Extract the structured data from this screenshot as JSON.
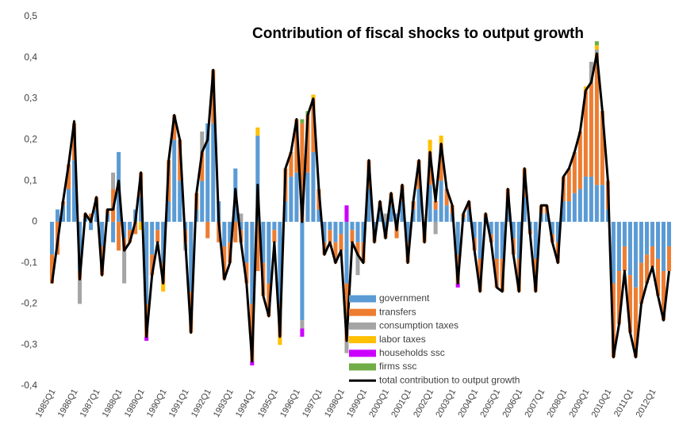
{
  "chart_data": {
    "type": "bar",
    "stacked": true,
    "title": "Contribution of fiscal shocks to output growth",
    "categories": [
      "1985Q1",
      null,
      null,
      null,
      "1986Q1",
      null,
      null,
      null,
      "1987Q1",
      null,
      null,
      null,
      "1988Q1",
      null,
      null,
      null,
      "1989Q1",
      null,
      null,
      null,
      "1990Q1",
      null,
      null,
      null,
      "1991Q1",
      null,
      null,
      null,
      "1992Q1",
      null,
      null,
      null,
      "1993Q1",
      null,
      null,
      null,
      "1994Q1",
      null,
      null,
      null,
      "1995Q1",
      null,
      null,
      null,
      "1996Q1",
      null,
      null,
      null,
      "1997Q1",
      null,
      null,
      null,
      "1998Q1",
      null,
      null,
      null,
      "1999Q1",
      null,
      null,
      null,
      "2000Q1",
      null,
      null,
      null,
      "2001Q1",
      null,
      null,
      null,
      "2002Q1",
      null,
      null,
      null,
      "2003Q1",
      null,
      null,
      null,
      "2004Q1",
      null,
      null,
      null,
      "2005Q1",
      null,
      null,
      null,
      "2006Q1",
      null,
      null,
      null,
      "2007Q1",
      null,
      null,
      null,
      "2008Q1",
      null,
      null,
      null,
      "2009Q1",
      null,
      null,
      null,
      "2010Q1",
      null,
      null,
      null,
      "2011Q1",
      null,
      null,
      null,
      "2012Q1",
      null,
      null,
      null
    ],
    "ylim": [
      -0.4,
      0.5
    ],
    "yticks": [
      {
        "value": 0.5,
        "label": "0,5"
      },
      {
        "value": 0.4,
        "label": "0,4"
      },
      {
        "value": 0.3,
        "label": "0,3"
      },
      {
        "value": 0.2,
        "label": "0,2"
      },
      {
        "value": 0.1,
        "label": "0,1"
      },
      0,
      {
        "value": -0.1,
        "label": "-0,1"
      },
      {
        "value": -0.2,
        "label": "-0,2"
      },
      {
        "value": -0.3,
        "label": "-0,3"
      },
      {
        "value": -0.4,
        "label": "-0,4"
      }
    ],
    "grid": false,
    "series": [
      {
        "name": "government",
        "color": "#5b9bd5",
        "values": [
          -0.08,
          0.03,
          0.04,
          0.08,
          0.15,
          -0.12,
          0.01,
          -0.02,
          0.03,
          -0.06,
          0.02,
          -0.05,
          0.17,
          -0.04,
          -0.02,
          0.03,
          0.06,
          -0.2,
          -0.08,
          -0.02,
          -0.1,
          0.05,
          0.2,
          0.1,
          -0.02,
          -0.17,
          0.03,
          0.1,
          0.24,
          0.24,
          0.05,
          -0.06,
          -0.05,
          0.13,
          -0.02,
          -0.1,
          -0.2,
          0.21,
          -0.1,
          -0.15,
          -0.02,
          -0.2,
          0.05,
          0.11,
          0.12,
          -0.24,
          0.12,
          0.17,
          0.03,
          -0.05,
          -0.02,
          -0.05,
          -0.03,
          -0.15,
          -0.02,
          -0.05,
          -0.05,
          0.08,
          -0.02,
          0.03,
          -0.02,
          0.04,
          0.02,
          0.05,
          -0.05,
          0.03,
          0.08,
          -0.02,
          0.09,
          0.03,
          0.1,
          0.04,
          0.02,
          -0.08,
          0.01,
          0.03,
          -0.04,
          -0.09,
          0.01,
          -0.03,
          -0.09,
          -0.09,
          0.04,
          -0.04,
          -0.09,
          0.06,
          -0.02,
          -0.09,
          0.02,
          0.02,
          -0.03,
          -0.05,
          0.05,
          0.05,
          0.07,
          0.08,
          0.11,
          0.11,
          0.09,
          0.09,
          0.03,
          -0.15,
          -0.12,
          -0.06,
          -0.13,
          -0.16,
          -0.1,
          -0.08,
          -0.06,
          -0.09,
          -0.12,
          -0.06
        ]
      },
      {
        "name": "transfers",
        "color": "#ed7d31",
        "values": [
          -0.07,
          -0.08,
          0.01,
          0.06,
          0.09,
          -0.02,
          0.01,
          0.02,
          0.03,
          -0.07,
          0.01,
          0.08,
          -0.07,
          -0.03,
          -0.03,
          -0.03,
          0.06,
          -0.08,
          -0.05,
          -0.03,
          -0.05,
          0.1,
          0.06,
          0.1,
          -0.03,
          -0.1,
          0.04,
          0.07,
          -0.04,
          0.13,
          -0.05,
          -0.08,
          -0.05,
          -0.05,
          -0.03,
          -0.05,
          -0.14,
          -0.12,
          -0.08,
          -0.08,
          -0.03,
          -0.08,
          0.08,
          0.06,
          0.13,
          0.24,
          0.14,
          0.13,
          0.05,
          -0.03,
          -0.03,
          -0.05,
          -0.04,
          -0.14,
          -0.03,
          -0.03,
          -0.05,
          0.07,
          -0.03,
          0.02,
          -0.02,
          0.03,
          -0.04,
          0.04,
          -0.05,
          0.02,
          0.07,
          -0.03,
          0.08,
          0.02,
          0.09,
          0.04,
          0.02,
          -0.07,
          0.01,
          0.02,
          -0.03,
          -0.08,
          0.01,
          -0.02,
          -0.07,
          -0.08,
          0.04,
          -0.04,
          -0.08,
          0.07,
          -0.01,
          -0.08,
          0.02,
          0.02,
          -0.02,
          -0.05,
          0.06,
          0.08,
          0.1,
          0.14,
          0.21,
          0.23,
          0.32,
          0.18,
          0.07,
          -0.18,
          -0.13,
          -0.06,
          -0.14,
          -0.17,
          -0.1,
          -0.07,
          -0.05,
          -0.09,
          -0.12,
          -0.06
        ]
      },
      {
        "name": "consumption taxes",
        "color": "#a5a5a5",
        "values": [
          0,
          0,
          0,
          0,
          0,
          -0.06,
          0,
          0,
          0,
          0,
          0,
          0.04,
          0,
          -0.08,
          0,
          0,
          0,
          0,
          0,
          0,
          0,
          0,
          0,
          0,
          -0.02,
          0,
          0,
          0.05,
          0,
          0,
          0,
          0,
          0,
          0,
          0.02,
          0,
          0,
          0,
          0,
          0,
          0,
          0,
          0,
          0,
          0,
          -0.02,
          0,
          0,
          0,
          0,
          0,
          0,
          0,
          -0.03,
          0,
          -0.05,
          0,
          0,
          0,
          0,
          0.02,
          0,
          0,
          0,
          0,
          0,
          0,
          0,
          0,
          -0.03,
          0,
          0,
          0,
          0,
          0,
          0,
          0,
          0,
          0,
          0,
          0,
          0,
          0,
          0,
          0,
          0,
          0,
          0,
          0,
          0,
          0,
          0,
          0,
          0,
          0,
          0,
          0,
          0.05,
          0.01,
          0,
          0,
          0,
          0,
          0,
          0,
          0,
          0,
          0,
          0,
          0,
          0,
          0
        ]
      },
      {
        "name": "labor taxes",
        "color": "#ffc000",
        "values": [
          0,
          0,
          0,
          0,
          0,
          0,
          0,
          0,
          0,
          0,
          0,
          0,
          0,
          0,
          0,
          0,
          -0.02,
          0,
          0,
          0,
          -0.02,
          0,
          0,
          0,
          0,
          0,
          0,
          0,
          0,
          0,
          0,
          0,
          0,
          0,
          0,
          0,
          0,
          0.02,
          0,
          0,
          0,
          -0.02,
          0,
          0,
          0,
          0,
          0,
          0.01,
          0,
          0,
          0,
          0,
          0,
          0,
          0,
          0,
          0,
          0,
          0,
          0,
          0,
          0,
          0,
          0,
          0,
          0,
          0,
          0,
          0.03,
          0,
          0.02,
          0,
          0,
          0,
          0,
          0,
          0,
          0,
          0,
          0,
          0,
          0,
          0,
          0,
          0,
          0,
          0,
          0,
          0,
          0,
          0,
          0,
          0,
          0,
          0,
          0,
          0.01,
          0,
          0.01,
          0,
          0,
          0,
          0,
          0,
          0,
          0,
          0,
          0,
          0,
          0,
          0,
          0
        ]
      },
      {
        "name": "households ssc",
        "color": "#cc00ff",
        "values": [
          0,
          0,
          0,
          0,
          0,
          0,
          0,
          0,
          0,
          0,
          0,
          0,
          0,
          0,
          0,
          0,
          0,
          -0.01,
          0,
          0,
          0,
          0,
          0,
          0,
          0,
          0,
          0,
          0,
          0,
          0,
          0,
          0,
          0,
          0,
          0,
          0,
          -0.01,
          0,
          0,
          0,
          0,
          0,
          0,
          0,
          0,
          -0.02,
          0,
          0,
          0,
          0,
          0,
          0,
          0,
          0.04,
          0,
          0,
          0,
          0,
          0,
          0,
          0,
          0,
          0,
          0,
          0,
          0,
          0,
          0,
          0,
          0,
          0,
          0,
          0,
          -0.01,
          0,
          0,
          0,
          0,
          0,
          0,
          0,
          0,
          0,
          0,
          0,
          0,
          0,
          0,
          0,
          0,
          0,
          0,
          0,
          0,
          0,
          0,
          0,
          0,
          0,
          0,
          0,
          0,
          0,
          0,
          0,
          0,
          0,
          0,
          0,
          0,
          0,
          0
        ]
      },
      {
        "name": "firms ssc",
        "color": "#70ad47",
        "values": [
          0,
          0,
          0,
          0,
          0,
          0,
          0,
          0,
          0,
          0,
          0,
          0,
          0,
          0,
          0,
          0,
          0,
          0,
          0,
          0,
          0,
          0,
          0,
          0,
          0,
          0,
          0,
          0,
          0,
          0,
          0,
          0,
          0,
          0,
          0,
          0,
          0,
          0,
          0,
          0,
          0,
          0,
          0,
          0,
          0,
          0.01,
          0.01,
          0,
          0,
          0,
          0,
          0,
          0,
          0,
          0,
          0,
          0,
          0,
          0,
          0,
          0,
          0,
          0,
          0,
          0,
          0,
          0,
          0,
          0,
          0,
          0,
          0,
          0,
          0,
          0,
          0,
          0,
          0,
          0,
          0,
          0,
          0,
          0,
          0,
          0,
          0,
          0,
          0,
          0,
          0,
          0,
          0,
          0,
          0,
          0,
          0,
          0,
          0,
          0.01,
          0,
          0,
          0,
          0,
          0,
          0,
          0,
          0,
          0,
          0,
          0,
          0,
          0
        ]
      },
      {
        "name": "total contribution to output growth",
        "color": "#000000",
        "type": "line",
        "values": [
          -0.15,
          -0.05,
          0.05,
          0.14,
          0.245,
          -0.14,
          0.02,
          0.0,
          0.06,
          -0.13,
          0.03,
          0.03,
          0.1,
          -0.07,
          -0.05,
          0.0,
          0.12,
          -0.28,
          -0.13,
          -0.05,
          -0.15,
          0.15,
          0.26,
          0.2,
          -0.05,
          -0.27,
          0.07,
          0.17,
          0.2,
          0.37,
          0.0,
          -0.14,
          -0.1,
          0.08,
          -0.05,
          -0.15,
          -0.34,
          0.09,
          -0.18,
          -0.23,
          -0.05,
          -0.28,
          0.13,
          0.17,
          0.25,
          0.0,
          0.26,
          0.3,
          0.08,
          -0.08,
          -0.05,
          -0.1,
          -0.07,
          -0.29,
          -0.05,
          -0.08,
          -0.1,
          0.15,
          -0.05,
          0.05,
          -0.04,
          0.07,
          -0.02,
          0.09,
          -0.1,
          0.05,
          0.15,
          -0.05,
          0.17,
          0.05,
          0.19,
          0.08,
          0.04,
          -0.15,
          0.02,
          0.05,
          -0.07,
          -0.17,
          0.02,
          -0.05,
          -0.16,
          -0.17,
          0.08,
          -0.08,
          -0.17,
          0.13,
          -0.03,
          -0.17,
          0.04,
          0.04,
          -0.05,
          -0.1,
          0.11,
          0.13,
          0.17,
          0.22,
          0.32,
          0.34,
          0.41,
          0.27,
          0.1,
          -0.33,
          -0.25,
          -0.12,
          -0.27,
          -0.33,
          -0.2,
          -0.15,
          -0.11,
          -0.18,
          -0.24,
          -0.12
        ]
      }
    ]
  }
}
